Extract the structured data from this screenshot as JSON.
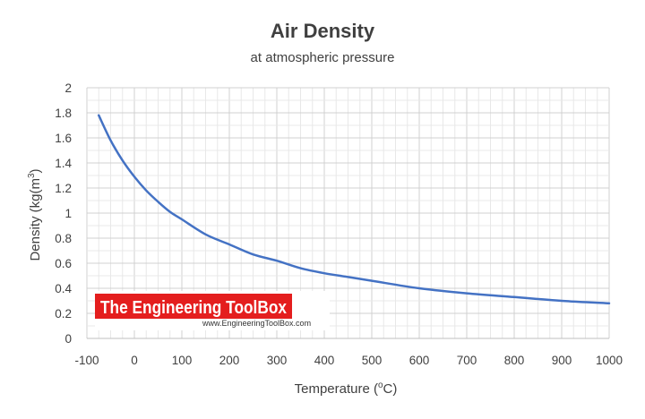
{
  "chart_data": {
    "type": "line",
    "title": "Air Density",
    "subtitle": "at atmospheric pressure",
    "xlabel": {
      "main": "Temperature (",
      "sup": "o",
      "tail": "C)"
    },
    "ylabel": {
      "main": "Density (kg(m",
      "sup": "3",
      "tail": ")"
    },
    "xlim": [
      -100,
      1000
    ],
    "ylim": [
      0,
      2
    ],
    "x_ticks": [
      -100,
      0,
      100,
      200,
      300,
      400,
      500,
      600,
      700,
      800,
      900,
      1000
    ],
    "y_ticks": [
      "0",
      "0.2",
      "0.4",
      "0.6",
      "0.8",
      "1",
      "1.2",
      "1.4",
      "1.6",
      "1.8",
      "2"
    ],
    "grid": true,
    "legend": "none",
    "series": [
      {
        "color": "#4472c4",
        "x": [
          -75,
          -50,
          -25,
          0,
          25,
          50,
          75,
          100,
          150,
          200,
          250,
          300,
          350,
          400,
          450,
          500,
          600,
          700,
          800,
          900,
          1000
        ],
        "y": [
          1.78,
          1.58,
          1.42,
          1.29,
          1.18,
          1.09,
          1.01,
          0.95,
          0.83,
          0.75,
          0.67,
          0.62,
          0.56,
          0.52,
          0.49,
          0.46,
          0.4,
          0.36,
          0.33,
          0.3,
          0.28
        ]
      }
    ]
  },
  "watermark": {
    "name": "The Engineering ToolBox",
    "url": "www.EngineeringToolBox.com",
    "color": "#e41e1e"
  }
}
